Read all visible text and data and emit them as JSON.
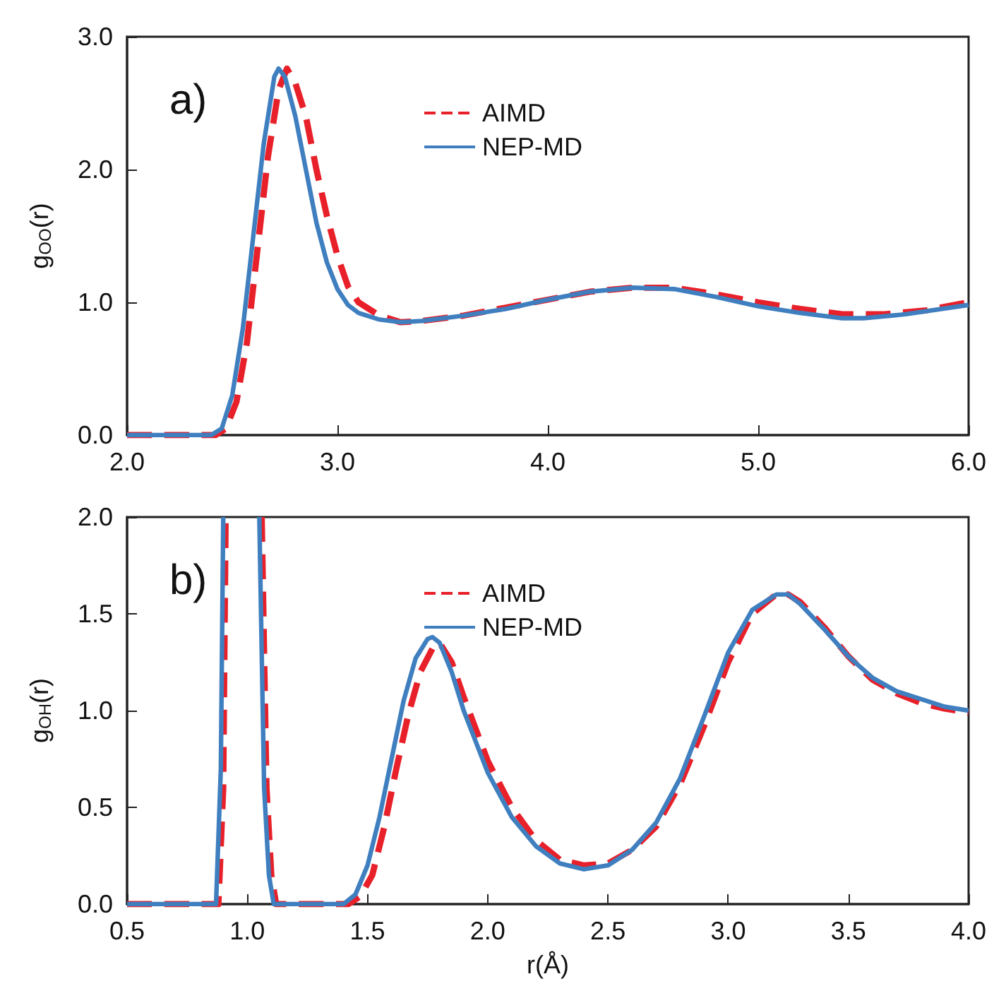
{
  "chart_data": [
    {
      "type": "line",
      "annotations": [
        "a)"
      ],
      "ylabel": "g$_{OO}$(r)",
      "xlim": [
        2,
        6
      ],
      "xticks": [
        {
          "value": 2,
          "label": "2.0"
        },
        {
          "value": 3,
          "label": "3.0"
        },
        {
          "value": 4,
          "label": "4.0"
        },
        {
          "value": 5,
          "label": "5.0"
        },
        {
          "value": 6,
          "label": "6.0"
        }
      ],
      "ylim": [
        0,
        3
      ],
      "yticks": [
        {
          "value": 0,
          "label": "0.0"
        },
        {
          "value": 1,
          "label": "1.0"
        },
        {
          "value": 2,
          "label": "2.0"
        },
        {
          "value": 3,
          "label": "3.0"
        }
      ],
      "grid": false,
      "legend": "top",
      "marker": "none",
      "series": [
        {
          "name": "AIMD",
          "color": "#e8202a",
          "line_style": "dashed",
          "x": [
            2.0,
            2.42,
            2.47,
            2.52,
            2.57,
            2.62,
            2.67,
            2.72,
            2.76,
            2.8,
            2.85,
            2.9,
            2.95,
            3.0,
            3.05,
            3.1,
            3.2,
            3.3,
            3.4,
            3.6,
            3.8,
            4.0,
            4.2,
            4.4,
            4.6,
            4.8,
            5.0,
            5.2,
            5.4,
            5.6,
            5.8,
            6.0
          ],
          "values": [
            0,
            0,
            0.05,
            0.25,
            0.7,
            1.4,
            2.1,
            2.6,
            2.76,
            2.65,
            2.4,
            2.0,
            1.65,
            1.35,
            1.12,
            1.0,
            0.9,
            0.85,
            0.86,
            0.9,
            0.96,
            1.02,
            1.08,
            1.11,
            1.11,
            1.06,
            1.0,
            0.95,
            0.91,
            0.91,
            0.94,
            1.0
          ]
        },
        {
          "name": "NEP-MD",
          "color": "#3f7fbf",
          "line_style": "solid",
          "x": [
            2.0,
            2.4,
            2.45,
            2.5,
            2.55,
            2.6,
            2.65,
            2.7,
            2.72,
            2.75,
            2.8,
            2.85,
            2.9,
            2.95,
            3.0,
            3.05,
            3.1,
            3.2,
            3.3,
            3.4,
            3.6,
            3.8,
            4.0,
            4.2,
            4.4,
            4.6,
            4.8,
            5.0,
            5.2,
            5.4,
            5.5,
            5.7,
            6.0
          ],
          "values": [
            0,
            0,
            0.05,
            0.3,
            0.8,
            1.5,
            2.2,
            2.7,
            2.76,
            2.7,
            2.4,
            2.0,
            1.6,
            1.3,
            1.1,
            0.98,
            0.92,
            0.87,
            0.85,
            0.86,
            0.9,
            0.95,
            1.02,
            1.08,
            1.11,
            1.1,
            1.04,
            0.97,
            0.92,
            0.88,
            0.88,
            0.91,
            0.98
          ]
        }
      ]
    },
    {
      "type": "line",
      "annotations": [
        "b)"
      ],
      "xlabel": "r(Å)",
      "ylabel": "g$_{OH}$(r)",
      "xlim": [
        0.5,
        4
      ],
      "xticks": [
        0.5,
        {
          "value": 1,
          "label": "1.0"
        },
        1.5,
        {
          "value": 2,
          "label": "2.0"
        },
        2.5,
        {
          "value": 3,
          "label": "3.0"
        },
        3.5,
        {
          "value": 4,
          "label": "4.0"
        }
      ],
      "ylim": [
        0,
        2
      ],
      "yticks": [
        {
          "value": 0,
          "label": "0.0"
        },
        0.5,
        {
          "value": 1,
          "label": "1.0"
        },
        1.5,
        {
          "value": 2,
          "label": "2.0"
        }
      ],
      "grid": false,
      "legend": "top",
      "marker": "none",
      "series": [
        {
          "name": "AIMD",
          "color": "#e8202a",
          "line_style": "dashed",
          "x": [
            0.5,
            0.88,
            0.9,
            0.91,
            0.98,
            1.06,
            1.08,
            1.1,
            1.12,
            1.42,
            1.47,
            1.52,
            1.57,
            1.62,
            1.67,
            1.72,
            1.77,
            1.8,
            1.85,
            1.9,
            2.0,
            2.1,
            2.2,
            2.3,
            2.4,
            2.5,
            2.6,
            2.7,
            2.8,
            2.9,
            3.0,
            3.1,
            3.2,
            3.25,
            3.3,
            3.4,
            3.5,
            3.6,
            3.7,
            3.8,
            3.9,
            4.0
          ],
          "values": [
            0,
            0,
            0.6,
            2.0,
            null,
            2.0,
            0.6,
            0.15,
            0,
            0,
            0.04,
            0.15,
            0.4,
            0.7,
            0.98,
            1.2,
            1.32,
            1.35,
            1.25,
            1.07,
            0.74,
            0.5,
            0.33,
            0.23,
            0.2,
            0.21,
            0.28,
            0.4,
            0.62,
            0.92,
            1.25,
            1.5,
            1.6,
            1.6,
            1.56,
            1.43,
            1.28,
            1.16,
            1.09,
            1.04,
            1.01,
            0.99
          ]
        },
        {
          "name": "NEP-MD",
          "color": "#3f7fbf",
          "line_style": "solid",
          "x": [
            0.5,
            0.87,
            0.89,
            0.9,
            0.97,
            1.05,
            1.07,
            1.09,
            1.11,
            1.4,
            1.45,
            1.5,
            1.55,
            1.6,
            1.65,
            1.7,
            1.75,
            1.77,
            1.8,
            1.85,
            1.9,
            2.0,
            2.1,
            2.2,
            2.3,
            2.4,
            2.5,
            2.6,
            2.7,
            2.8,
            2.9,
            3.0,
            3.1,
            3.2,
            3.25,
            3.3,
            3.4,
            3.5,
            3.6,
            3.7,
            3.8,
            3.9,
            4.0
          ],
          "values": [
            0,
            0,
            0.7,
            2.0,
            null,
            2.0,
            0.6,
            0.15,
            0,
            0,
            0.05,
            0.2,
            0.45,
            0.75,
            1.05,
            1.27,
            1.37,
            1.38,
            1.35,
            1.2,
            1.0,
            0.68,
            0.45,
            0.3,
            0.21,
            0.18,
            0.2,
            0.28,
            0.42,
            0.65,
            0.97,
            1.3,
            1.52,
            1.6,
            1.6,
            1.55,
            1.42,
            1.28,
            1.17,
            1.1,
            1.06,
            1.02,
            1.0
          ]
        }
      ]
    }
  ]
}
